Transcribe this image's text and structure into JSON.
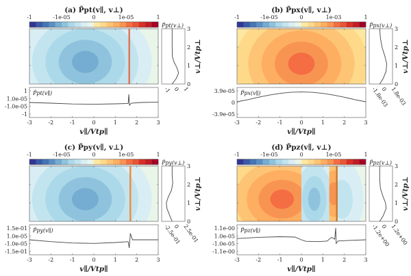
{
  "chart_data": [
    {
      "id": "a",
      "type": "heatmap",
      "title": "(a) P̃pt(v∥, v⊥)",
      "colorbar": {
        "ticks": [
          "-1",
          "-1e-05",
          "0",
          "1e-05",
          "1"
        ],
        "levels": 20
      },
      "xlabel": "v∥/Vtp∥",
      "ylabel": "v⊥/Vtp⊥",
      "xlim": [
        -3,
        3
      ],
      "ylim": [
        0,
        3
      ],
      "xticks": [
        "-3",
        "-2",
        "-1",
        "0",
        "1",
        "2",
        "3"
      ],
      "yticks": [
        "0",
        "1",
        "2",
        "3"
      ],
      "field": {
        "background_sign": "negative",
        "blob": {
          "center": [
            -0.4,
            1.2
          ],
          "peak_level": -5
        },
        "spike_x": 1.65,
        "spike_color": "#e07050",
        "regions": []
      },
      "side_panel": {
        "label": "P̃pt(v⊥)",
        "xticks": [
          "-1",
          "0",
          "1"
        ],
        "profile": [
          [
            0,
            0.0
          ],
          [
            0.3,
            0.35
          ],
          [
            0.6,
            0.55
          ],
          [
            0.9,
            0.4
          ],
          [
            1.2,
            0.15
          ],
          [
            1.5,
            0.02
          ],
          [
            2.0,
            0.0
          ],
          [
            3.0,
            0.0
          ]
        ]
      },
      "line_panel": {
        "label": "P̃pt(v∥)",
        "yticks": [
          "1",
          "1.0e-05",
          "-1.0e-05",
          "-1"
        ],
        "ylim": [
          -1,
          1
        ],
        "points": [
          [
            -3,
            0.0
          ],
          [
            -2,
            -0.05
          ],
          [
            -1,
            -0.11
          ],
          [
            0,
            -0.13
          ],
          [
            1,
            -0.1
          ],
          [
            1.6,
            -0.07
          ],
          [
            1.63,
            0.6
          ],
          [
            1.66,
            -0.2
          ],
          [
            1.75,
            -0.05
          ],
          [
            2.2,
            0.0
          ],
          [
            3,
            0.02
          ]
        ]
      }
    },
    {
      "id": "b",
      "type": "heatmap",
      "title": "(b) P̃px(v∥, v⊥)",
      "colorbar": {
        "ticks": [
          "-1",
          "-1e-05",
          "0",
          "1e-03",
          "1"
        ],
        "levels": 20
      },
      "xlabel": "v∥/Vtp∥",
      "ylabel": "v⊥/Vtp⊥",
      "xlim": [
        -3,
        3
      ],
      "ylim": [
        0,
        3
      ],
      "xticks": [
        "-3",
        "-2",
        "-1",
        "0",
        "1",
        "2",
        "3"
      ],
      "yticks": [
        "0",
        "1",
        "2",
        "3"
      ],
      "field": {
        "background_sign": "positive",
        "blob": {
          "center": [
            0.0,
            1.1
          ],
          "peak_level": 5
        },
        "spike_x": null,
        "regions": []
      },
      "side_panel": {
        "label": "P̃px(v⊥)",
        "xticks": [
          "-1.8e-03",
          "0",
          "1.8e-03"
        ],
        "profile": [
          [
            0,
            0.0
          ],
          [
            0.3,
            0.3
          ],
          [
            0.7,
            0.55
          ],
          [
            1.1,
            0.6
          ],
          [
            1.5,
            0.45
          ],
          [
            2.0,
            0.2
          ],
          [
            2.5,
            0.06
          ],
          [
            3.0,
            0.0
          ]
        ]
      },
      "line_panel": {
        "label": "P̃px(v∥)",
        "yticks": [
          "3.9e-05",
          "0",
          "-3.9e-05"
        ],
        "ylim": [
          -3.9e-05,
          3.9e-05
        ],
        "points": [
          [
            -3,
            2e-06
          ],
          [
            -2.5,
            8e-06
          ],
          [
            -2,
            1.5e-05
          ],
          [
            -1.5,
            2.1e-05
          ],
          [
            -1,
            2.6e-05
          ],
          [
            -0.5,
            2.9e-05
          ],
          [
            0,
            3e-05
          ],
          [
            0.5,
            2.9e-05
          ],
          [
            1,
            2.6e-05
          ],
          [
            1.5,
            2.1e-05
          ],
          [
            2,
            1.5e-05
          ],
          [
            2.5,
            8e-06
          ],
          [
            3,
            2e-06
          ]
        ]
      }
    },
    {
      "id": "c",
      "type": "heatmap",
      "title": "(c) P̃py(v∥, v⊥)",
      "colorbar": {
        "ticks": [
          "-1",
          "-1e-05",
          "0",
          "1e-05",
          "1"
        ],
        "levels": 20
      },
      "xlabel": "v∥/Vtp∥",
      "ylabel": "v⊥/Vtp⊥",
      "xlim": [
        -3,
        3
      ],
      "ylim": [
        0,
        3
      ],
      "xticks": [
        "-3",
        "-2",
        "-1",
        "0",
        "1",
        "2",
        "3"
      ],
      "yticks": [
        "0",
        "1",
        "2",
        "3"
      ],
      "field": {
        "background_sign": "negative",
        "blob": {
          "center": [
            -0.4,
            1.2
          ],
          "peak_level": -5
        },
        "spike_x": 1.7,
        "spike_color": "#f08a3a",
        "regions": []
      },
      "side_panel": {
        "label": "P̃py(v⊥)",
        "xticks": [
          "-2.5e-01",
          "0",
          "2.5e-01"
        ],
        "profile": [
          [
            0,
            0.0
          ],
          [
            0.3,
            -0.2
          ],
          [
            0.7,
            -0.45
          ],
          [
            1.0,
            -0.5
          ],
          [
            1.3,
            -0.35
          ],
          [
            1.7,
            -0.05
          ],
          [
            2.1,
            0.05
          ],
          [
            2.5,
            0.0
          ],
          [
            3.0,
            0.0
          ]
        ]
      },
      "line_panel": {
        "label": "P̃py(v∥)",
        "yticks": [
          "1.5e-01",
          "1.0e-05",
          "-1.0e-05",
          "-1.5e-01"
        ],
        "ylim": [
          -0.15,
          0.15
        ],
        "points": [
          [
            -3,
            0.0
          ],
          [
            -2,
            -0.02
          ],
          [
            -1,
            -0.035
          ],
          [
            0,
            -0.04
          ],
          [
            1,
            -0.03
          ],
          [
            1.6,
            -0.02
          ],
          [
            1.65,
            -0.09
          ],
          [
            1.7,
            0.07
          ],
          [
            1.8,
            0.0
          ],
          [
            2.2,
            0.0
          ],
          [
            3,
            0.0
          ]
        ]
      }
    },
    {
      "id": "d",
      "type": "heatmap",
      "title": "(d) P̃pz(v∥, v⊥)",
      "colorbar": {
        "ticks": [
          "-1",
          "-1e-05",
          "0",
          "1e-05",
          "1"
        ],
        "levels": 20
      },
      "xlabel": "v∥/Vtp∥",
      "ylabel": "v⊥/Vtp⊥",
      "xlim": [
        -3,
        3
      ],
      "ylim": [
        0,
        3
      ],
      "xticks": [
        "-3",
        "-2",
        "-1",
        "0",
        "1",
        "2",
        "3"
      ],
      "yticks": [
        "0",
        "1",
        "2",
        "3"
      ],
      "field": {
        "background_sign": "mixed",
        "regions": [
          {
            "x": [
              -3,
              0
            ],
            "sign": "positive",
            "center": [
              -0.9,
              1.2
            ],
            "peak_level": 5
          },
          {
            "x": [
              0,
              1.3
            ],
            "sign": "negative",
            "center": [
              0.6,
              1.2
            ],
            "peak_level": -4
          },
          {
            "x": [
              1.3,
              1.65
            ],
            "sign": "positive",
            "center": [
              1.5,
              1.5
            ],
            "peak_level": 4
          },
          {
            "x": [
              1.65,
              3
            ],
            "sign": "negative",
            "center": [
              1.9,
              1.2
            ],
            "peak_level": -2
          }
        ],
        "spike_x": 1.65,
        "spike_color": "#c8782a"
      },
      "side_panel": {
        "label": "P̃pz(v⊥)",
        "xticks": [
          "-1.2e+00",
          "0",
          "1.2e+00"
        ],
        "profile": [
          [
            0,
            0.0
          ],
          [
            0.3,
            0.3
          ],
          [
            0.7,
            0.55
          ],
          [
            1.0,
            0.5
          ],
          [
            1.4,
            0.25
          ],
          [
            1.8,
            0.06
          ],
          [
            2.3,
            0.0
          ],
          [
            3.0,
            0.0
          ]
        ]
      },
      "line_panel": {
        "label": "P̃pz(v∥)",
        "yticks": [
          "1.1e-00",
          "1.0e-05",
          "-1.0e-05",
          "-1.1e-00"
        ],
        "ylim": [
          -1.1,
          1.1
        ],
        "points": [
          [
            -3,
            0.1
          ],
          [
            -2,
            0.2
          ],
          [
            -1,
            0.25
          ],
          [
            -0.3,
            0.22
          ],
          [
            0,
            0.0
          ],
          [
            0.2,
            -0.12
          ],
          [
            0.8,
            -0.15
          ],
          [
            1.2,
            -0.1
          ],
          [
            1.4,
            0.2
          ],
          [
            1.55,
            0.05
          ],
          [
            1.6,
            0.95
          ],
          [
            1.62,
            -0.3
          ],
          [
            1.7,
            -0.1
          ],
          [
            2.2,
            -0.05
          ],
          [
            3,
            0.0
          ]
        ]
      }
    }
  ]
}
